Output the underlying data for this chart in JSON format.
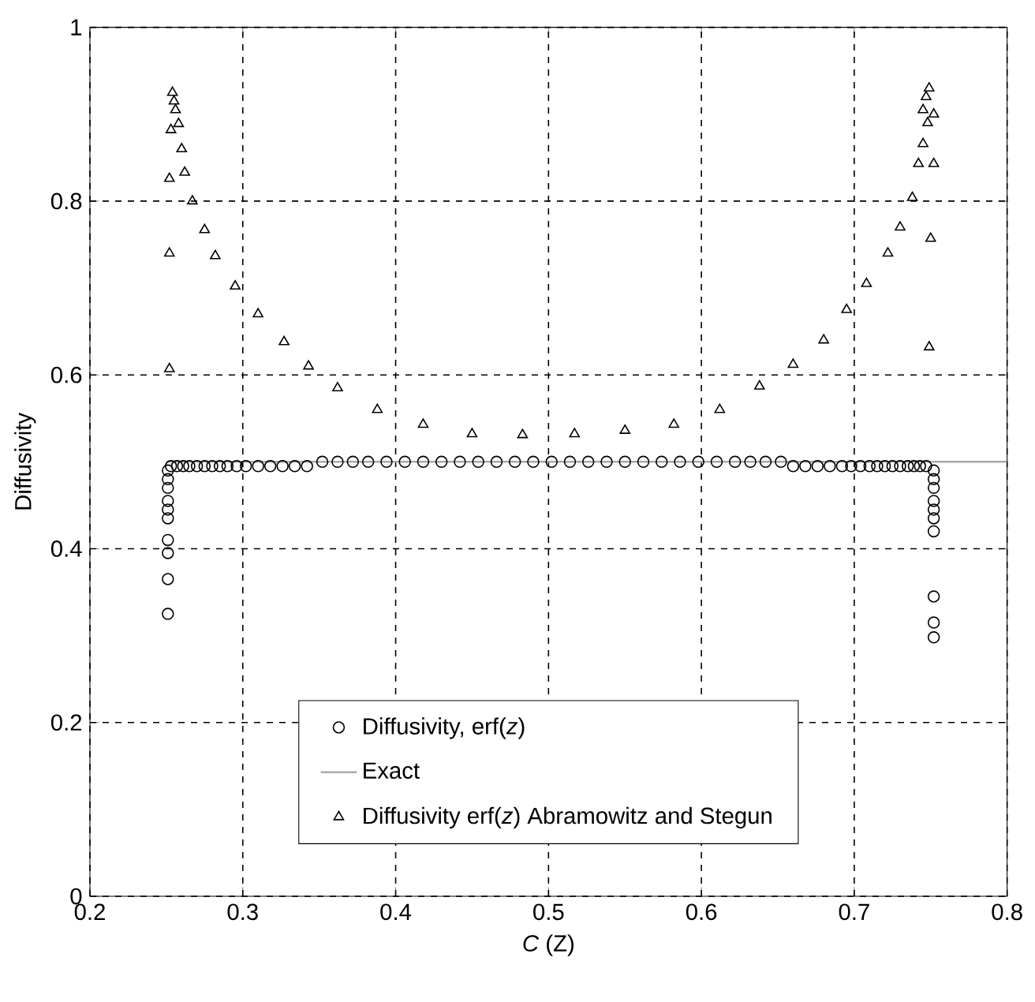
{
  "chart_data": {
    "type": "scatter",
    "xlabel": "*C* (Z)",
    "ylabel": "Diffusivity",
    "xlim": [
      0.2,
      0.8
    ],
    "ylim": [
      0,
      1
    ],
    "xticks": [
      0.2,
      0.3,
      0.4,
      0.5,
      0.6,
      0.7,
      0.8
    ],
    "yticks": [
      0,
      0.2,
      0.4,
      0.6,
      0.8,
      1
    ],
    "grid": true,
    "legend": "bottom",
    "series": [
      {
        "name": "Diffusivity, erf(*z*)",
        "type": "scatter",
        "marker": "circle",
        "color": "#000000",
        "x": [
          0.251,
          0.251,
          0.251,
          0.251,
          0.251,
          0.251,
          0.251,
          0.251,
          0.251,
          0.251,
          0.253,
          0.257,
          0.261,
          0.265,
          0.27,
          0.275,
          0.28,
          0.285,
          0.29,
          0.296,
          0.302,
          0.31,
          0.318,
          0.326,
          0.334,
          0.342,
          0.352,
          0.362,
          0.372,
          0.382,
          0.394,
          0.406,
          0.418,
          0.43,
          0.442,
          0.454,
          0.466,
          0.478,
          0.49,
          0.502,
          0.514,
          0.526,
          0.538,
          0.55,
          0.562,
          0.574,
          0.586,
          0.598,
          0.61,
          0.622,
          0.632,
          0.642,
          0.652,
          0.66,
          0.668,
          0.676,
          0.684,
          0.692,
          0.698,
          0.704,
          0.71,
          0.715,
          0.72,
          0.725,
          0.73,
          0.735,
          0.739,
          0.743,
          0.747,
          0.752,
          0.752,
          0.752,
          0.752,
          0.752,
          0.752,
          0.752,
          0.752,
          0.752,
          0.752
        ],
        "values": [
          0.49,
          0.48,
          0.47,
          0.455,
          0.445,
          0.435,
          0.41,
          0.395,
          0.365,
          0.325,
          0.495,
          0.495,
          0.495,
          0.495,
          0.495,
          0.495,
          0.495,
          0.495,
          0.495,
          0.495,
          0.495,
          0.495,
          0.495,
          0.495,
          0.495,
          0.495,
          0.5,
          0.5,
          0.5,
          0.5,
          0.5,
          0.5,
          0.5,
          0.5,
          0.5,
          0.5,
          0.5,
          0.5,
          0.5,
          0.5,
          0.5,
          0.5,
          0.5,
          0.5,
          0.5,
          0.5,
          0.5,
          0.5,
          0.5,
          0.5,
          0.5,
          0.5,
          0.5,
          0.495,
          0.495,
          0.495,
          0.495,
          0.495,
          0.495,
          0.495,
          0.495,
          0.495,
          0.495,
          0.495,
          0.495,
          0.495,
          0.495,
          0.495,
          0.495,
          0.49,
          0.48,
          0.47,
          0.455,
          0.445,
          0.435,
          0.42,
          0.345,
          0.315,
          0.298
        ]
      },
      {
        "name": "Exact",
        "type": "line",
        "line_style": "solid",
        "color": "#aaaaaa",
        "x": [
          0.25,
          0.8
        ],
        "values": [
          0.5,
          0.5
        ]
      },
      {
        "name": "Diffusivity erf(*z*) Abramowitz and Stegun",
        "type": "scatter",
        "marker": "triangle",
        "color": "#000000",
        "x": [
          0.254,
          0.255,
          0.256,
          0.253,
          0.258,
          0.26,
          0.252,
          0.262,
          0.267,
          0.252,
          0.275,
          0.282,
          0.295,
          0.252,
          0.31,
          0.327,
          0.343,
          0.362,
          0.388,
          0.418,
          0.45,
          0.483,
          0.517,
          0.55,
          0.582,
          0.612,
          0.638,
          0.66,
          0.68,
          0.695,
          0.708,
          0.722,
          0.73,
          0.738,
          0.742,
          0.745,
          0.748,
          0.745,
          0.747,
          0.749,
          0.752,
          0.752,
          0.75,
          0.749
        ],
        "values": [
          0.925,
          0.915,
          0.905,
          0.882,
          0.889,
          0.86,
          0.826,
          0.833,
          0.8,
          0.74,
          0.767,
          0.737,
          0.702,
          0.607,
          0.67,
          0.638,
          0.61,
          0.585,
          0.56,
          0.543,
          0.532,
          0.531,
          0.532,
          0.536,
          0.543,
          0.56,
          0.587,
          0.612,
          0.64,
          0.675,
          0.705,
          0.74,
          0.77,
          0.804,
          0.843,
          0.866,
          0.89,
          0.905,
          0.92,
          0.93,
          0.9,
          0.843,
          0.757,
          0.632
        ]
      }
    ]
  }
}
